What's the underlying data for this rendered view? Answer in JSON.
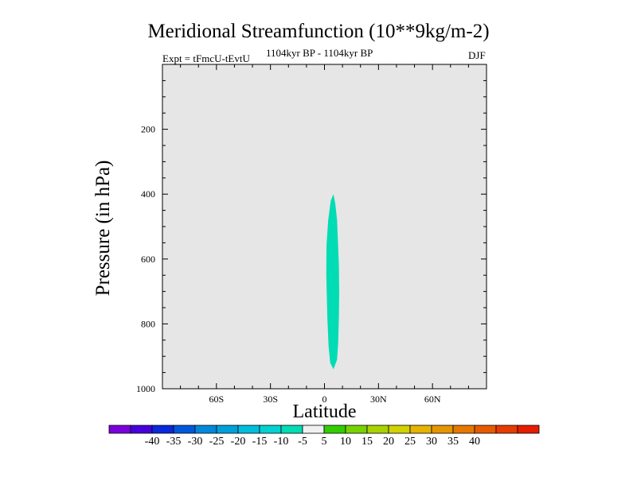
{
  "chart_data": {
    "type": "contour",
    "title": "Meridional Streamfunction (10**9kg/m-2)",
    "subtitle_left": "Expt = tFmcU-tEvtU",
    "subtitle_center": "1104kyr BP - 1104kyr BP",
    "subtitle_right": "DJF",
    "xlabel": "Latitude",
    "ylabel": "Pressure (in hPa)",
    "xlim": [
      -90,
      90
    ],
    "ylim": [
      0,
      1000
    ],
    "x_ticks": [
      -60,
      -30,
      0,
      30,
      60
    ],
    "x_tick_labels": [
      "60S",
      "30S",
      "0",
      "30N",
      "60N"
    ],
    "y_ticks": [
      200,
      400,
      600,
      800,
      1000
    ],
    "y_tick_labels": [
      "200",
      "400",
      "600",
      "800",
      "1000"
    ],
    "background_value_color": "#e6e6e6",
    "filled_region": {
      "level_range": [
        -10,
        -5
      ],
      "color": "#00dcb4",
      "outline": [
        [
          5,
          400
        ],
        [
          6,
          430
        ],
        [
          7,
          480
        ],
        [
          7.5,
          550
        ],
        [
          8,
          620
        ],
        [
          8.2,
          700
        ],
        [
          8,
          780
        ],
        [
          7.6,
          860
        ],
        [
          7,
          910
        ],
        [
          5,
          940
        ],
        [
          3.2,
          920
        ],
        [
          2.3,
          870
        ],
        [
          1.6,
          780
        ],
        [
          1,
          650
        ],
        [
          1.1,
          560
        ],
        [
          2.1,
          480
        ],
        [
          3.5,
          420
        ]
      ]
    },
    "colorbar": {
      "colors": [
        "#7a00dc",
        "#4600dc",
        "#0a28dc",
        "#0058dc",
        "#0088dc",
        "#00a0dc",
        "#00bedc",
        "#00d2d2",
        "#00dcb4",
        "#f0f0f0",
        "#32cd00",
        "#78d200",
        "#aad200",
        "#d2d200",
        "#e6b400",
        "#e69600",
        "#e67800",
        "#e65a00",
        "#e63c00",
        "#e61e00"
      ],
      "labels": [
        "-40",
        "-35",
        "-30",
        "-25",
        "-20",
        "-15",
        "-10",
        "-5",
        "5",
        "10",
        "15",
        "20",
        "25",
        "30",
        "35",
        "40"
      ]
    }
  }
}
